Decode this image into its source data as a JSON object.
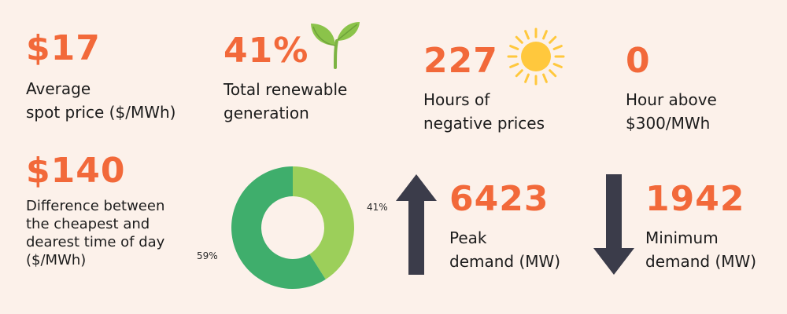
{
  "stats": {
    "avg_price": {
      "value": "$17",
      "label": "Average\nspot price ($/MWh)"
    },
    "renewable": {
      "value": "41%",
      "label": "Total renewable\ngeneration",
      "icon": "sprout-icon",
      "color": "#8bc34a"
    },
    "negative_hours": {
      "value": "227",
      "label": "Hours of\nnegative prices",
      "icon": "sun-icon",
      "color": "#ffc83d"
    },
    "hours_above": {
      "value": "0",
      "label": "Hour above\n$300/MWh"
    },
    "difference": {
      "value": "$140",
      "label": "Difference between\nthe cheapest and\ndearest time of day\n($/MWh)"
    },
    "peak": {
      "value": "6423",
      "label": "Peak\ndemand (MW)",
      "icon": "arrow-up-icon"
    },
    "minimum": {
      "value": "1942",
      "label": "Minimum\ndemand (MW)",
      "icon": "arrow-down-icon"
    }
  },
  "donut": {
    "segments": [
      {
        "label": "41%",
        "value": 41,
        "color": "#9ccf5a"
      },
      {
        "label": "59%",
        "value": 59,
        "color": "#3fae6c"
      }
    ]
  },
  "colors": {
    "accent": "#f2693a",
    "background": "#fcf1ea",
    "arrow": "#3b3c4a"
  }
}
